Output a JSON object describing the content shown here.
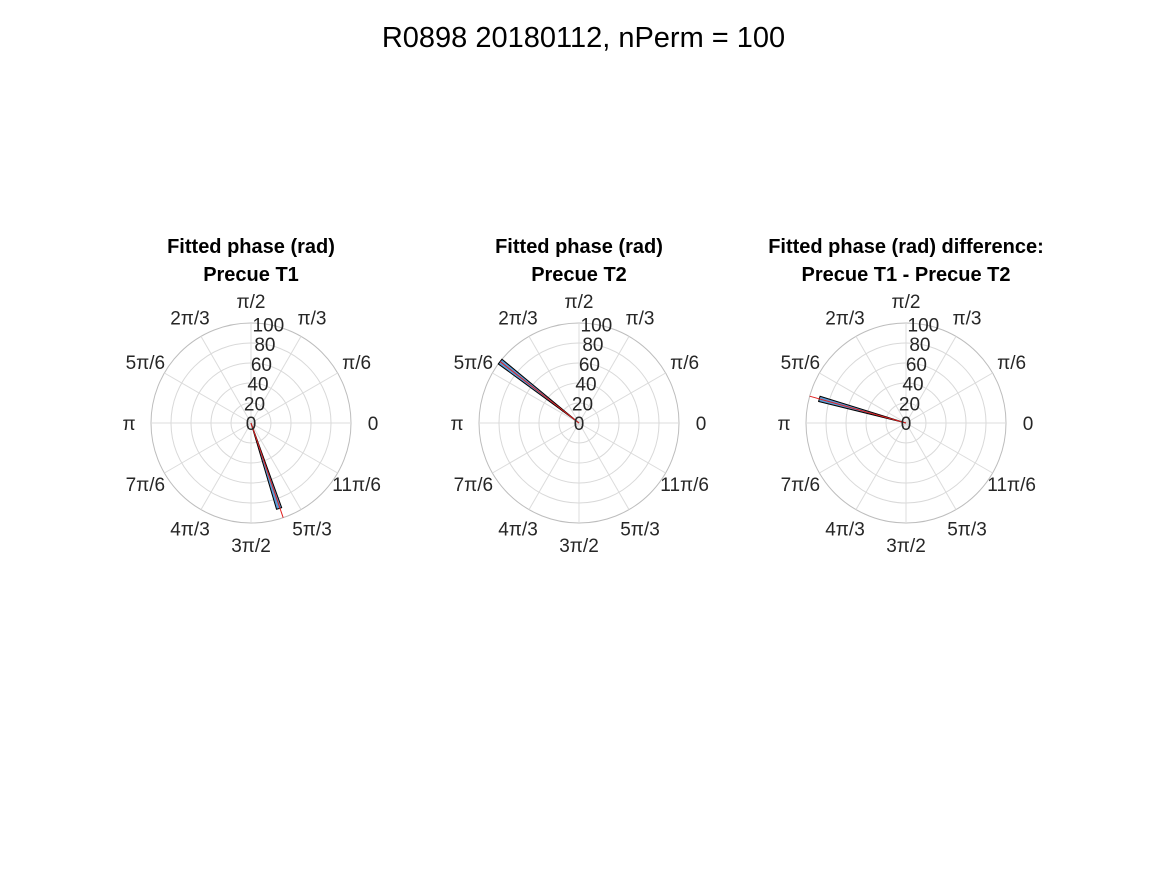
{
  "figure": {
    "title": "R0898 20180112, nPerm = 100"
  },
  "theta_tick_labels": [
    "0",
    "π/6",
    "π/3",
    "π/2",
    "2π/3",
    "5π/6",
    "π",
    "7π/6",
    "4π/3",
    "3π/2",
    "5π/3",
    "11π/6"
  ],
  "r_tick_labels": [
    "0",
    "20",
    "40",
    "60",
    "80",
    "100"
  ],
  "colors": {
    "bar_face": "#5b9bd5",
    "bar_edge": "#000000",
    "mean_line": "#e01e1e",
    "grid": "#d9d9d9"
  },
  "chart_data": [
    {
      "type": "polar-histogram",
      "title_line1": "Fitted phase (rad)",
      "title_line2": "Precue T1",
      "rlim": [
        0,
        100
      ],
      "r_ticks": [
        0,
        20,
        40,
        60,
        80,
        100
      ],
      "theta_ticks_rad": [
        0,
        0.5236,
        1.0472,
        1.5708,
        2.0944,
        2.618,
        3.1416,
        3.6652,
        4.1888,
        4.7124,
        5.236,
        5.7596
      ],
      "bins": [
        {
          "theta_start": 5.0,
          "theta_end": 5.06,
          "count": 90
        }
      ],
      "mean_angle": 5.04,
      "mean_line_r": 100
    },
    {
      "type": "polar-histogram",
      "title_line1": "Fitted phase (rad)",
      "title_line2": "Precue T2",
      "rlim": [
        0,
        100
      ],
      "r_ticks": [
        0,
        20,
        40,
        60,
        80,
        100
      ],
      "theta_ticks_rad": [
        0,
        0.5236,
        1.0472,
        1.5708,
        2.0944,
        2.618,
        3.1416,
        3.6652,
        4.1888,
        4.7124,
        5.236,
        5.7596
      ],
      "bins": [
        {
          "theta_start": 2.45,
          "theta_end": 2.51,
          "count": 100
        }
      ],
      "mean_angle": 2.48,
      "mean_line_r": 100
    },
    {
      "type": "polar-histogram",
      "title_line1": "Fitted phase (rad) difference:",
      "title_line2": "Precue T1 - Precue T2",
      "rlim": [
        0,
        100
      ],
      "r_ticks": [
        0,
        20,
        40,
        60,
        80,
        100
      ],
      "theta_ticks_rad": [
        0,
        0.5236,
        1.0472,
        1.5708,
        2.0944,
        2.618,
        3.1416,
        3.6652,
        4.1888,
        4.7124,
        5.236,
        5.7596
      ],
      "bins": [
        {
          "theta_start": 2.84,
          "theta_end": 2.9,
          "count": 90
        }
      ],
      "mean_angle": 2.87,
      "mean_line_r": 100
    }
  ]
}
